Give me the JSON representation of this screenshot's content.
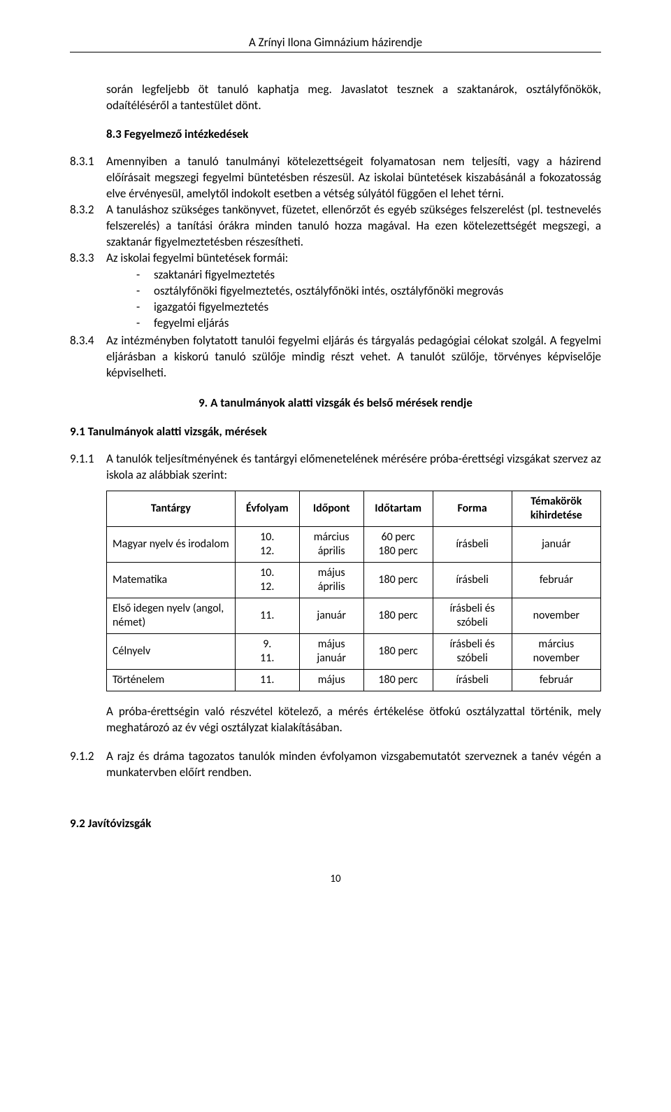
{
  "header": "A Zrínyi Ilona Gimnázium  házirendje",
  "intro_para": "során legfeljebb öt tanuló kaphatja meg. Javaslatot tesznek a szaktanárok, osztályfőnökök, odaítéléséről a tantestület dönt.",
  "sec_83_title": "8.3  Fegyelmező intézkedések",
  "item_831": {
    "num": "8.3.1",
    "text": "Amennyiben a tanuló tanulmányi kötelezettségeit folyamatosan nem teljesíti, vagy a házirend előírásait megszegi fegyelmi büntetésben részesül. Az iskolai büntetések kiszabásánál a fokozatosság elve érvényesül, amelytől indokolt esetben a vétség súlyától függően el lehet térni."
  },
  "item_832": {
    "num": "8.3.2",
    "text": "A tanuláshoz szükséges tankönyvet, füzetet, ellenőrzőt és egyéb szükséges felszerelést (pl. testnevelés felszerelés) a tanítási órákra minden tanuló hozza magával. Ha ezen kötelezettségét megszegi, a szaktanár figyelmeztetésben részesítheti."
  },
  "item_833": {
    "num": "8.3.3",
    "text": "Az iskolai fegyelmi büntetések formái:",
    "bullets": [
      "szaktanári figyelmeztetés",
      "osztályfőnöki figyelmeztetés, osztályfőnöki intés, osztályfőnöki megrovás",
      "igazgatói figyelmeztetés",
      "fegyelmi eljárás"
    ]
  },
  "item_834": {
    "num": "8.3.4",
    "text": "Az intézményben folytatott tanulói fegyelmi eljárás és tárgyalás pedagógiai célokat szolgál. A fegyelmi eljárásban a kiskorú tanuló szülője mindig részt vehet. A tanulót szülője, törvényes képviselője képviselheti."
  },
  "chapter9_title": "9.  A tanulmányok alatti vizsgák és belső mérések rendje",
  "sec_91_title": "9.1 Tanulmányok alatti vizsgák, mérések",
  "item_911": {
    "num": "9.1.1",
    "text": "A tanulók teljesítményének és tantárgyi előmenetelének mérésére próba-érettségi vizsgákat szervez az iskola az alábbiak szerint:"
  },
  "table": {
    "columns": [
      "Tantárgy",
      "Évfolyam",
      "Időpont",
      "Időtartam",
      "Forma",
      "Témakörök kihirdetése"
    ],
    "rows": [
      [
        "Magyar nyelv és irodalom",
        "10.\n12.",
        "március\náprilis",
        "60 perc\n180 perc",
        "írásbeli",
        "január"
      ],
      [
        "Matematika",
        "10.\n12.",
        "május\náprilis",
        "180 perc",
        "írásbeli",
        "február"
      ],
      [
        "Első idegen nyelv (angol, német)",
        "11.",
        "január",
        "180 perc",
        "írásbeli és szóbeli",
        "november"
      ],
      [
        "Célnyelv",
        "9.\n11.",
        "május\njanuár",
        "180 perc",
        "írásbeli és szóbeli",
        "március\nnovember"
      ],
      [
        "Történelem",
        "11.",
        "május",
        "180 perc",
        "írásbeli",
        "február"
      ]
    ],
    "col_widths": [
      "26%",
      "13%",
      "13%",
      "14%",
      "16%",
      "18%"
    ]
  },
  "after_table_para": "A próba-érettségin való részvétel kötelező, a mérés értékelése ötfokú osztályzattal történik, mely meghatározó az év végi osztályzat kialakításában.",
  "item_912": {
    "num": "9.1.2",
    "text": "A rajz és dráma tagozatos tanulók minden évfolyamon vizsgabemutatót szerveznek a tanév végén a munkatervben előírt rendben."
  },
  "sec_92_title": "9.2 Javítóvizsgák",
  "page_number": "10"
}
